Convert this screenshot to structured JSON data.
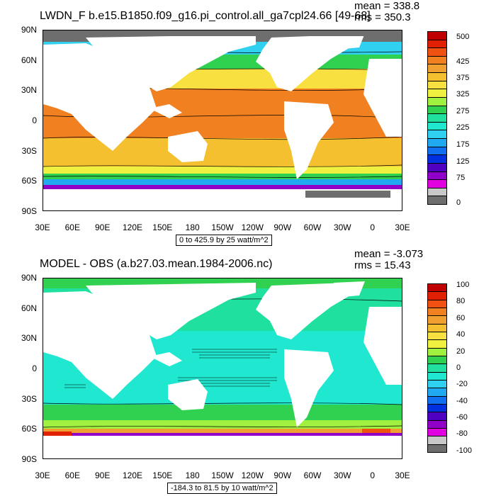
{
  "panels": [
    {
      "title": "LWDN_F b.e15.B1850.f09_g16.pi_control.all_ga7cpl24.66 [49-68]",
      "mean": "mean = 338.8",
      "rms": "rms = 350.3",
      "range_text": "0 to 425.9 by 25 watt/m^2",
      "lat_labels": [
        "90N",
        "60N",
        "30N",
        "0",
        "30S",
        "60S",
        "90S"
      ],
      "lon_labels": [
        "30E",
        "60E",
        "90E",
        "120E",
        "150E",
        "180",
        "150W",
        "120W",
        "90W",
        "60W",
        "30W",
        "0",
        "30E"
      ],
      "colorbar": {
        "labels": [
          "500",
          "425",
          "375",
          "325",
          "275",
          "225",
          "175",
          "125",
          "75",
          "0"
        ],
        "colors": [
          "#c00000",
          "#e02000",
          "#f05010",
          "#f08020",
          "#f0a030",
          "#f5c030",
          "#f8e040",
          "#f0f040",
          "#a0f040",
          "#30d050",
          "#20e0a0",
          "#20e8d0",
          "#30d0f0",
          "#20a8f0",
          "#1070f0",
          "#0030e0",
          "#5000c0",
          "#9000c8",
          "#e000e0",
          "#c8c8c8",
          "#6e6e6e"
        ]
      }
    },
    {
      "title": "MODEL - OBS (a.b27.03.mean.1984-2006.nc)",
      "mean": "mean = -3.073",
      "rms": "rms = 15.43",
      "range_text": "-184.3 to 81.5 by 10 watt/m^2",
      "lat_labels": [
        "90N",
        "60N",
        "30N",
        "0",
        "30S",
        "60S",
        "90S"
      ],
      "lon_labels": [
        "30E",
        "60E",
        "90E",
        "120E",
        "150E",
        "180",
        "150W",
        "120W",
        "90W",
        "60W",
        "30W",
        "0",
        "30E"
      ],
      "colorbar": {
        "labels": [
          "100",
          "80",
          "60",
          "40",
          "20",
          "0",
          "-20",
          "-40",
          "-60",
          "-80",
          "-100"
        ],
        "colors": [
          "#c00000",
          "#e02000",
          "#f05010",
          "#f08020",
          "#f0a030",
          "#f5c030",
          "#f8e040",
          "#f0f040",
          "#a0f040",
          "#30d050",
          "#20e0a0",
          "#20e8d0",
          "#30d0f0",
          "#20a8f0",
          "#1070f0",
          "#0030e0",
          "#5000c0",
          "#9000c8",
          "#e000e0",
          "#c8c8c8",
          "#6e6e6e"
        ]
      }
    }
  ]
}
